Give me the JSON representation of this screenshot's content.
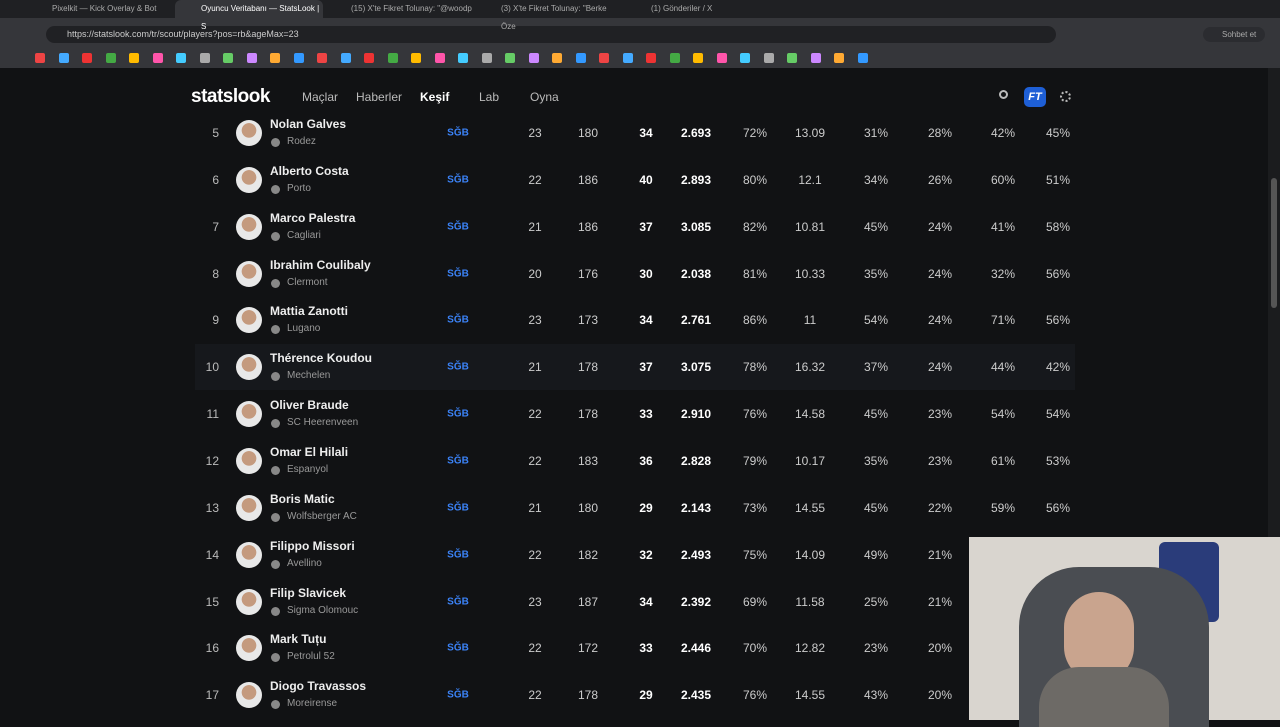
{
  "tabs": [
    "Pixelkit — Kick Overlay & Bot",
    "Oyuncu Veritabanı — StatsLook | S",
    "(15) X'te Fikret Tolunay: \"@woodp",
    "(3) X'te Fikret Tolunay: \"Berke Öze",
    "(1) Gönderiler / X"
  ],
  "address": "https://statslook.com/tr/scout/players?pos=rb&ageMax=23",
  "chat_button": "Sohbet et",
  "site": {
    "logo": "statslook",
    "nav": [
      "Maçlar",
      "Haberler",
      "Keşif",
      "Lab",
      "Oyna"
    ],
    "user": "FT"
  },
  "table": {
    "rows": [
      [
        "5",
        "Nolan Galves",
        "Rodez",
        "SĞB",
        "23",
        "180",
        "34",
        "2.693",
        "72%",
        "13.09",
        "31%",
        "28%",
        "42%",
        "45%"
      ],
      [
        "6",
        "Alberto Costa",
        "Porto",
        "SĞB",
        "22",
        "186",
        "40",
        "2.893",
        "80%",
        "12.1",
        "34%",
        "26%",
        "60%",
        "51%"
      ],
      [
        "7",
        "Marco Palestra",
        "Cagliari",
        "SĞB",
        "21",
        "186",
        "37",
        "3.085",
        "82%",
        "10.81",
        "45%",
        "24%",
        "41%",
        "58%"
      ],
      [
        "8",
        "Ibrahim Coulibaly",
        "Clermont",
        "SĞB",
        "20",
        "176",
        "30",
        "2.038",
        "81%",
        "10.33",
        "35%",
        "24%",
        "32%",
        "56%"
      ],
      [
        "9",
        "Mattia Zanotti",
        "Lugano",
        "SĞB",
        "23",
        "173",
        "34",
        "2.761",
        "86%",
        "11",
        "54%",
        "24%",
        "71%",
        "56%"
      ],
      [
        "10",
        "Thérence Koudou",
        "Mechelen",
        "SĞB",
        "21",
        "178",
        "37",
        "3.075",
        "78%",
        "16.32",
        "37%",
        "24%",
        "44%",
        "42%"
      ],
      [
        "11",
        "Oliver Braude",
        "SC Heerenveen",
        "SĞB",
        "22",
        "178",
        "33",
        "2.910",
        "76%",
        "14.58",
        "45%",
        "23%",
        "54%",
        "54%"
      ],
      [
        "12",
        "Omar El Hilali",
        "Espanyol",
        "SĞB",
        "22",
        "183",
        "36",
        "2.828",
        "79%",
        "10.17",
        "35%",
        "23%",
        "61%",
        "53%"
      ],
      [
        "13",
        "Boris Matic",
        "Wolfsberger AC",
        "SĞB",
        "21",
        "180",
        "29",
        "2.143",
        "73%",
        "14.55",
        "45%",
        "22%",
        "59%",
        "56%"
      ],
      [
        "14",
        "Filippo Missori",
        "Avellino",
        "SĞB",
        "22",
        "182",
        "32",
        "2.493",
        "75%",
        "14.09",
        "49%",
        "21%"
      ],
      [
        "15",
        "Filip Slavicek",
        "Sigma Olomouc",
        "SĞB",
        "23",
        "187",
        "34",
        "2.392",
        "69%",
        "11.58",
        "25%",
        "21%"
      ],
      [
        "16",
        "Mark Tuțu",
        "Petrolul 52",
        "SĞB",
        "22",
        "172",
        "33",
        "2.446",
        "70%",
        "12.82",
        "23%",
        "20%"
      ],
      [
        "17",
        "Diogo Travassos",
        "Moreirense",
        "SĞB",
        "22",
        "178",
        "29",
        "2.435",
        "76%",
        "14.55",
        "43%",
        "20%"
      ]
    ]
  }
}
